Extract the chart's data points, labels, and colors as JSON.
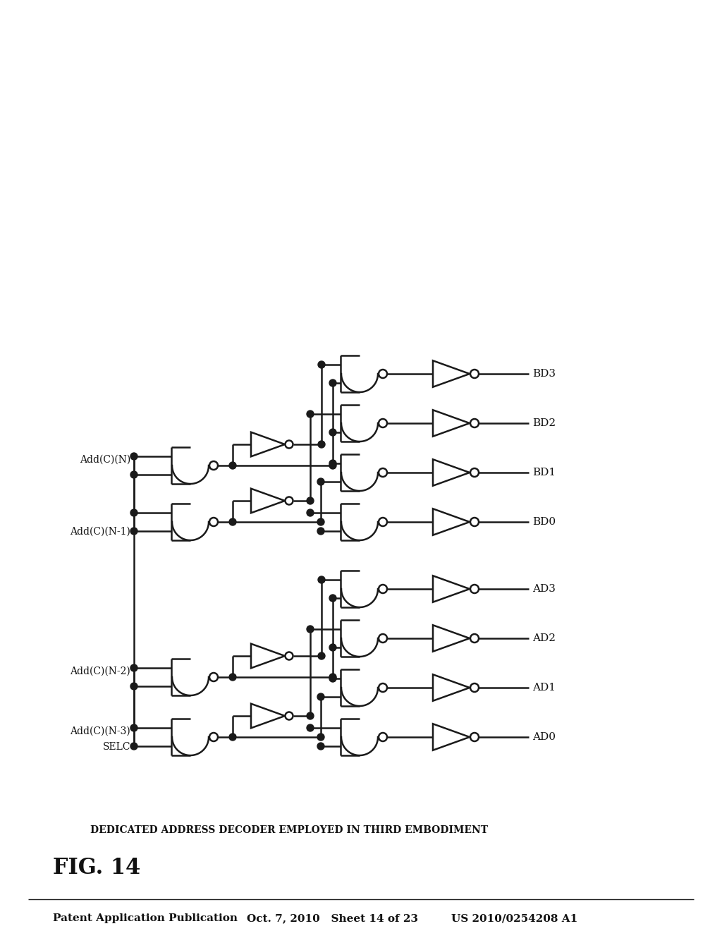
{
  "header_left": "Patent Application Publication",
  "header_mid": "Oct. 7, 2010   Sheet 14 of 23",
  "header_right": "US 2010/0254208 A1",
  "fig_label": "FIG. 14",
  "subtitle": "DEDICATED ADDRESS DECODER EMPLOYED IN THIRD EMBODIMENT",
  "outputs_top": [
    "AD0",
    "AD1",
    "AD2",
    "AD3"
  ],
  "outputs_bot": [
    "BD0",
    "BD1",
    "BD2",
    "BD3"
  ],
  "bg_color": "#ffffff",
  "line_color": "#1a1a1a",
  "lw": 1.8
}
